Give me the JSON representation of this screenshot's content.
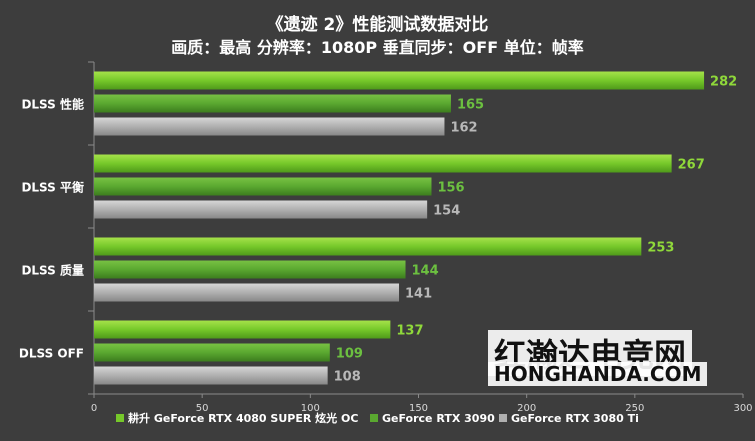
{
  "chart_data": {
    "type": "bar",
    "orientation": "horizontal",
    "title": "《遗迹 2》性能测试数据对比",
    "subtitle": "画质：最高 分辨率：1080P 垂直同步：OFF 单位：帧率",
    "categories": [
      "DLSS 性能",
      "DLSS 平衡",
      "DLSS 质量",
      "DLSS OFF"
    ],
    "series": [
      {
        "name": "耕升 GeForce RTX 4080 SUPER 炫光 OC",
        "values": [
          282,
          267,
          253,
          137
        ],
        "color": "#76c82a"
      },
      {
        "name": "GeForce RTX 3090",
        "values": [
          165,
          156,
          144,
          109
        ],
        "color": "#5aa830"
      },
      {
        "name": "GeForce RTX 3080 Ti",
        "values": [
          162,
          154,
          141,
          108
        ],
        "color": "#b0b0b0"
      }
    ],
    "xlim": [
      0,
      300
    ],
    "xticks": [
      "0",
      "50",
      "100",
      "150",
      "200",
      "250",
      "300"
    ],
    "legend_position": "bottom",
    "grid": false
  },
  "watermark": {
    "line1": "红瀚达电竞网",
    "line2": "HONGHANDA.COM"
  }
}
